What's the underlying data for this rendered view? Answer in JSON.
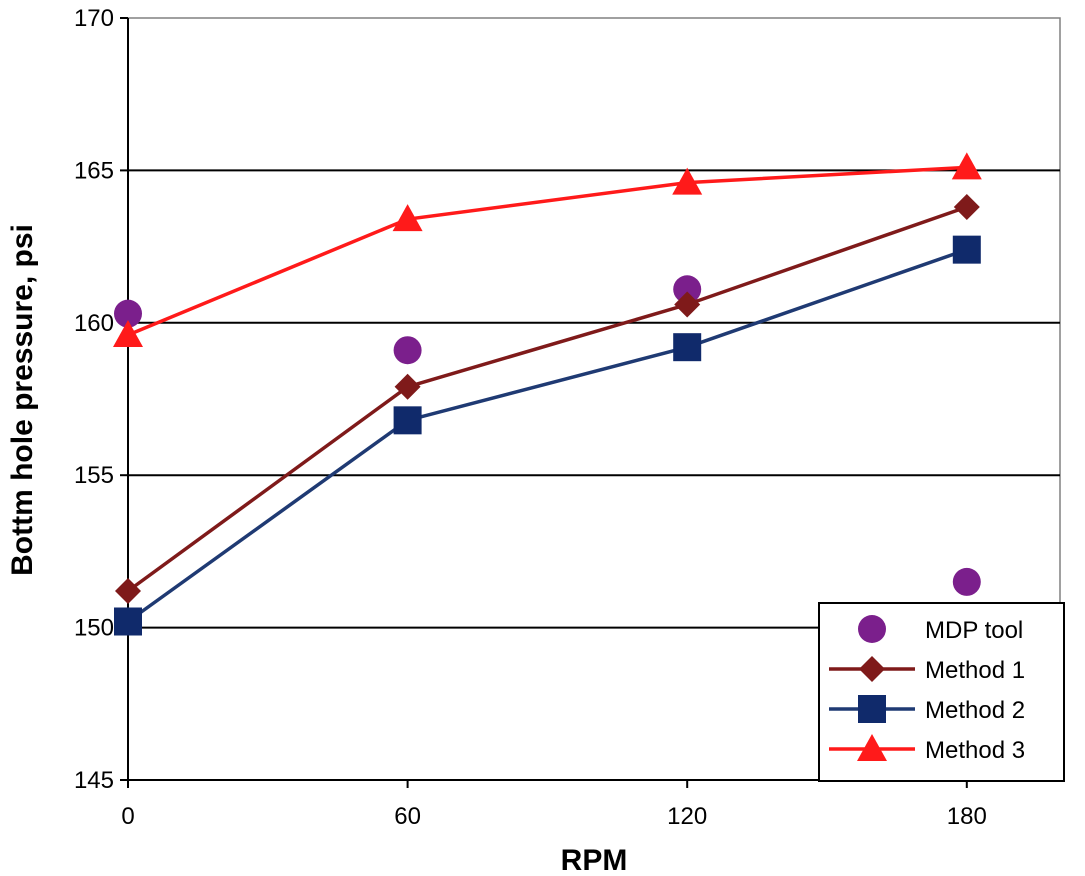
{
  "chart_data": {
    "type": "line",
    "title": "",
    "xlabel": "RPM",
    "ylabel": "Bottm hole pressure, psi",
    "x": [
      0,
      60,
      120,
      180
    ],
    "x_ticks": [
      0,
      60,
      120,
      180
    ],
    "x_tick_labels": [
      "0",
      "60",
      "120",
      "180"
    ],
    "xlim": [
      0,
      200
    ],
    "ylim": [
      145,
      170
    ],
    "y_ticks": [
      145,
      150,
      155,
      160,
      165,
      170
    ],
    "y_tick_labels": [
      "145",
      "150",
      "155",
      "160",
      "165",
      "170"
    ],
    "grid": "horizontal",
    "legend_position": "bottom-right",
    "series": [
      {
        "name": "MDP tool",
        "values": [
          160.3,
          159.1,
          161.1,
          151.5
        ],
        "color": "#7B1F8C",
        "marker": "circle",
        "line": false
      },
      {
        "name": "Method 1",
        "values": [
          151.2,
          157.9,
          160.6,
          163.8
        ],
        "color": "#7F1A1A",
        "marker": "diamond",
        "line": true
      },
      {
        "name": "Method 2",
        "values": [
          150.2,
          156.8,
          159.2,
          162.4
        ],
        "color": "#1F3A73",
        "marker": "square",
        "line": true,
        "marker_color": "#102A6B"
      },
      {
        "name": "Method 3",
        "values": [
          159.6,
          163.4,
          164.6,
          165.1
        ],
        "color": "#FF1A1A",
        "marker": "triangle",
        "line": true
      }
    ]
  }
}
